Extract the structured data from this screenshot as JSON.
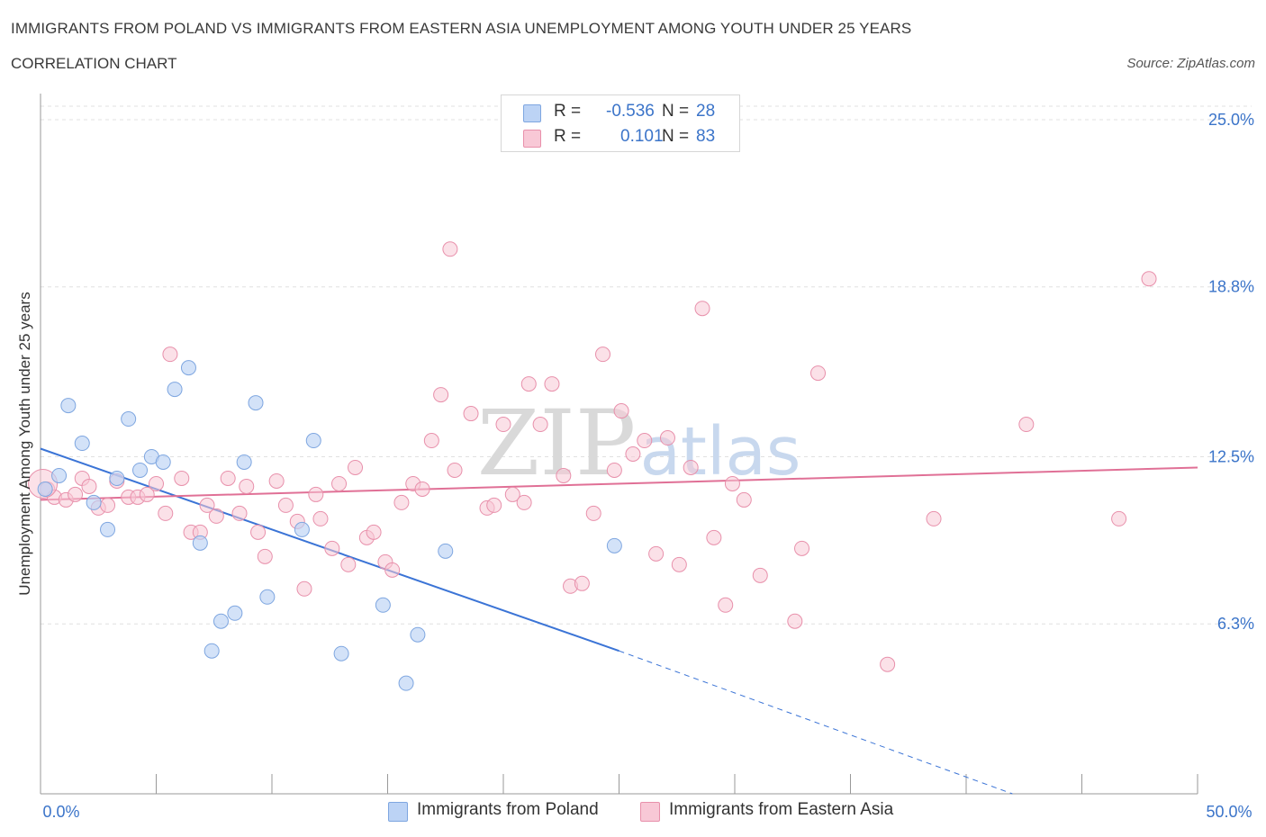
{
  "header": {
    "title": "IMMIGRANTS FROM POLAND VS IMMIGRANTS FROM EASTERN ASIA UNEMPLOYMENT AMONG YOUTH UNDER 25 YEARS",
    "subtitle": "CORRELATION CHART",
    "source": "Source: ZipAtlas.com"
  },
  "legend": {
    "rows": [
      {
        "r_label": "R =",
        "r_value": "-0.536",
        "n_label": "N =",
        "n_value": "28"
      },
      {
        "r_label": "R =",
        "r_value": "0.101",
        "n_label": "N =",
        "n_value": "83"
      }
    ],
    "series": [
      "Immigrants from Poland",
      "Immigrants from Eastern Asia"
    ]
  },
  "colors": {
    "poland_fill": "#bcd3f5",
    "poland_stroke": "#7ea6e0",
    "poland_line": "#3b74d6",
    "asia_fill": "#f8c8d6",
    "asia_stroke": "#e890ab",
    "asia_line": "#e07096",
    "tick_label": "#3b74c9",
    "grid": "#e0e0e0"
  },
  "watermark": {
    "zip": "ZIP",
    "atlas": "atlas"
  },
  "chart_data": {
    "type": "scatter",
    "title": "IMMIGRANTS FROM POLAND VS IMMIGRANTS FROM EASTERN ASIA UNEMPLOYMENT AMONG YOUTH UNDER 25 YEARS",
    "xlabel": "",
    "ylabel": "Unemployment Among Youth under 25 years",
    "xlim": [
      0,
      50
    ],
    "ylim": [
      0,
      25.5
    ],
    "x_tick_labels": [
      {
        "value": 0,
        "label": "0.0%"
      },
      {
        "value": 50,
        "label": "50.0%"
      }
    ],
    "y_tick_labels": [
      {
        "value": 6.3,
        "label": "6.3%"
      },
      {
        "value": 12.5,
        "label": "12.5%"
      },
      {
        "value": 18.8,
        "label": "18.8%"
      },
      {
        "value": 25.0,
        "label": "25.0%"
      }
    ],
    "x_minor_ticks": [
      0,
      5,
      10,
      15,
      20,
      25,
      30,
      35,
      40,
      45,
      50
    ],
    "grid": true,
    "legend_position": "top-center",
    "series": [
      {
        "name": "Immigrants from Poland",
        "R": -0.536,
        "N": 28,
        "points": [
          [
            0.2,
            11.3
          ],
          [
            0.8,
            11.8
          ],
          [
            1.2,
            14.4
          ],
          [
            1.8,
            13.0
          ],
          [
            2.3,
            10.8
          ],
          [
            2.9,
            9.8
          ],
          [
            3.3,
            11.7
          ],
          [
            3.8,
            13.9
          ],
          [
            4.3,
            12.0
          ],
          [
            4.8,
            12.5
          ],
          [
            5.3,
            12.3
          ],
          [
            5.8,
            15.0
          ],
          [
            6.4,
            15.8
          ],
          [
            6.9,
            9.3
          ],
          [
            7.4,
            5.3
          ],
          [
            7.8,
            6.4
          ],
          [
            8.4,
            6.7
          ],
          [
            8.8,
            12.3
          ],
          [
            9.3,
            14.5
          ],
          [
            9.8,
            7.3
          ],
          [
            11.3,
            9.8
          ],
          [
            11.8,
            13.1
          ],
          [
            13.0,
            5.2
          ],
          [
            14.8,
            7.0
          ],
          [
            15.8,
            4.1
          ],
          [
            16.3,
            5.9
          ],
          [
            17.5,
            9.0
          ],
          [
            24.8,
            9.2
          ]
        ],
        "trend": {
          "x0": 0,
          "y0": 12.8,
          "x1": 25,
          "y1": 5.3,
          "dashed_to_x": 42,
          "dashed_to_y": 0
        }
      },
      {
        "name": "Immigrants from Eastern Asia",
        "R": 0.101,
        "N": 83,
        "points": [
          [
            0.3,
            11.3
          ],
          [
            0.6,
            11.0
          ],
          [
            1.1,
            10.9
          ],
          [
            1.5,
            11.1
          ],
          [
            1.8,
            11.7
          ],
          [
            2.1,
            11.4
          ],
          [
            2.5,
            10.6
          ],
          [
            2.9,
            10.7
          ],
          [
            3.3,
            11.6
          ],
          [
            3.8,
            11.0
          ],
          [
            4.2,
            11.0
          ],
          [
            4.6,
            11.1
          ],
          [
            5.0,
            11.5
          ],
          [
            5.4,
            10.4
          ],
          [
            5.6,
            16.3
          ],
          [
            6.1,
            11.7
          ],
          [
            6.5,
            9.7
          ],
          [
            6.9,
            9.7
          ],
          [
            7.2,
            10.7
          ],
          [
            7.6,
            10.3
          ],
          [
            8.1,
            11.7
          ],
          [
            8.6,
            10.4
          ],
          [
            8.9,
            11.4
          ],
          [
            9.4,
            9.7
          ],
          [
            9.7,
            8.8
          ],
          [
            10.2,
            11.6
          ],
          [
            10.6,
            10.7
          ],
          [
            11.1,
            10.1
          ],
          [
            11.4,
            7.6
          ],
          [
            11.9,
            11.1
          ],
          [
            12.1,
            10.2
          ],
          [
            12.6,
            9.1
          ],
          [
            12.9,
            11.5
          ],
          [
            13.3,
            8.5
          ],
          [
            13.6,
            12.1
          ],
          [
            14.1,
            9.5
          ],
          [
            14.4,
            9.7
          ],
          [
            14.9,
            8.6
          ],
          [
            15.2,
            8.3
          ],
          [
            15.6,
            10.8
          ],
          [
            16.1,
            11.5
          ],
          [
            16.5,
            11.3
          ],
          [
            16.9,
            13.1
          ],
          [
            17.3,
            14.8
          ],
          [
            17.9,
            12.0
          ],
          [
            17.7,
            20.2
          ],
          [
            18.6,
            14.1
          ],
          [
            19.3,
            10.6
          ],
          [
            19.6,
            10.7
          ],
          [
            20.0,
            13.7
          ],
          [
            20.4,
            11.1
          ],
          [
            20.9,
            10.8
          ],
          [
            21.1,
            15.2
          ],
          [
            21.6,
            13.7
          ],
          [
            22.1,
            15.2
          ],
          [
            22.6,
            11.8
          ],
          [
            22.9,
            7.7
          ],
          [
            23.4,
            7.8
          ],
          [
            23.9,
            10.4
          ],
          [
            24.3,
            16.3
          ],
          [
            24.8,
            12.0
          ],
          [
            25.1,
            14.2
          ],
          [
            25.6,
            12.6
          ],
          [
            26.1,
            13.1
          ],
          [
            26.6,
            8.9
          ],
          [
            27.6,
            8.5
          ],
          [
            27.1,
            13.2
          ],
          [
            28.1,
            12.1
          ],
          [
            28.6,
            18.0
          ],
          [
            29.1,
            9.5
          ],
          [
            29.6,
            7.0
          ],
          [
            29.9,
            11.5
          ],
          [
            30.4,
            10.9
          ],
          [
            31.1,
            8.1
          ],
          [
            32.6,
            6.4
          ],
          [
            32.9,
            9.1
          ],
          [
            33.6,
            15.6
          ],
          [
            36.6,
            4.8
          ],
          [
            38.6,
            10.2
          ],
          [
            42.6,
            13.7
          ],
          [
            46.6,
            10.2
          ],
          [
            47.9,
            19.1
          ],
          [
            0.1,
            11.5
          ]
        ],
        "trend": {
          "x0": 0,
          "y0": 10.9,
          "x1": 50,
          "y1": 12.1
        }
      }
    ]
  }
}
